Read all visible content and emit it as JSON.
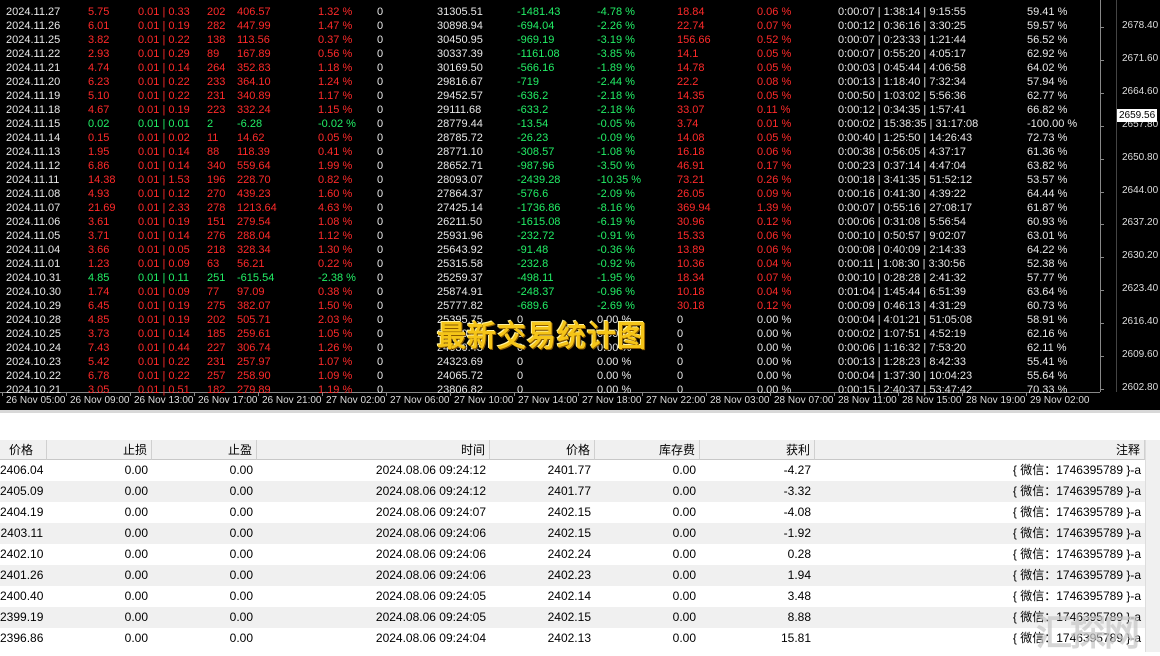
{
  "stats": {
    "rows": [
      {
        "color": "#ff2a2a",
        "cells": [
          "2024.11.27",
          "5.75",
          "0.01 | 0.33",
          "202",
          "406.57",
          "1.32 %",
          "0",
          "31305.51",
          "-1481.43",
          "-4.78 %",
          "18.84",
          "0.06 %",
          "0:00:07 | 1:38:14 | 9:15:55",
          "59.41 %"
        ]
      },
      {
        "color": "#ff2a2a",
        "cells": [
          "2024.11.26",
          "6.01",
          "0.01 | 0.19",
          "282",
          "447.99",
          "1.47 %",
          "0",
          "30898.94",
          "-694.04",
          "-2.26 %",
          "22.74",
          "0.07 %",
          "0:00:12 | 0:36:16 | 3:30:25",
          "59.57 %"
        ]
      },
      {
        "color": "#ff2a2a",
        "cells": [
          "2024.11.25",
          "3.82",
          "0.01 | 0.22",
          "138",
          "113.56",
          "0.37 %",
          "0",
          "30450.95",
          "-969.19",
          "-3.19 %",
          "156.66",
          "0.52 %",
          "0:00:07 | 0:23:33 | 1:21:44",
          "56.52 %"
        ]
      },
      {
        "color": "#ff2a2a",
        "cells": [
          "2024.11.22",
          "2.93",
          "0.01 | 0.29",
          "89",
          "167.89",
          "0.56 %",
          "0",
          "30337.39",
          "-1161.08",
          "-3.85 %",
          "14.1",
          "0.05 %",
          "0:00:07 | 0:55:20 | 4:05:17",
          "62.92 %"
        ]
      },
      {
        "color": "#ff2a2a",
        "cells": [
          "2024.11.21",
          "4.74",
          "0.01 | 0.14",
          "264",
          "352.83",
          "1.18 %",
          "0",
          "30169.50",
          "-566.16",
          "-1.89 %",
          "14.78",
          "0.05 %",
          "0:00:03 | 0:45:44 | 4:06:58",
          "64.02 %"
        ]
      },
      {
        "color": "#ff2a2a",
        "cells": [
          "2024.11.20",
          "6.23",
          "0.01 | 0.22",
          "233",
          "364.10",
          "1.24 %",
          "0",
          "29816.67",
          "-719",
          "-2.44 %",
          "22.2",
          "0.08 %",
          "0:00:13 | 1:18:40 | 7:32:34",
          "57.94 %"
        ]
      },
      {
        "color": "#ff2a2a",
        "cells": [
          "2024.11.19",
          "5.10",
          "0.01 | 0.22",
          "231",
          "340.89",
          "1.17 %",
          "0",
          "29452.57",
          "-636.2",
          "-2.18 %",
          "14.35",
          "0.05 %",
          "0:00:50 | 1:03:02 | 5:56:36",
          "62.77 %"
        ]
      },
      {
        "color": "#ff2a2a",
        "cells": [
          "2024.11.18",
          "4.67",
          "0.01 | 0.19",
          "223",
          "332.24",
          "1.15 %",
          "0",
          "29111.68",
          "-633.2",
          "-2.18 %",
          "33.07",
          "0.11 %",
          "0:00:12 | 0:34:35 | 1:57:41",
          "66.82 %"
        ]
      },
      {
        "color": "#22ee66",
        "cells": [
          "2024.11.15",
          "0.02",
          "0.01 | 0.01",
          "2",
          "-6.28",
          "-0.02 %",
          "0",
          "28779.44",
          "-13.54",
          "-0.05 %",
          "3.74",
          "0.01 %",
          "0:00:02 | 15:38:35 | 31:17:08",
          "-100.00 %"
        ]
      },
      {
        "color": "#ff2a2a",
        "cells": [
          "2024.11.14",
          "0.15",
          "0.01 | 0.02",
          "11",
          "14.62",
          "0.05 %",
          "0",
          "28785.72",
          "-26.23",
          "-0.09 %",
          "14.08",
          "0.05 %",
          "0:00:40 | 1:25:50 | 14:26:43",
          "72.73 %"
        ]
      },
      {
        "color": "#ff2a2a",
        "cells": [
          "2024.11.13",
          "1.95",
          "0.01 | 0.14",
          "88",
          "118.39",
          "0.41 %",
          "0",
          "28771.10",
          "-308.57",
          "-1.08 %",
          "16.18",
          "0.06 %",
          "0:00:38 | 0:56:05 | 4:37:17",
          "61.36 %"
        ]
      },
      {
        "color": "#ff2a2a",
        "cells": [
          "2024.11.12",
          "6.86",
          "0.01 | 0.14",
          "340",
          "559.64",
          "1.99 %",
          "0",
          "28652.71",
          "-987.96",
          "-3.50 %",
          "46.91",
          "0.17 %",
          "0:00:23 | 0:37:14 | 4:47:04",
          "63.82 %"
        ]
      },
      {
        "color": "#ff2a2a",
        "cells": [
          "2024.11.11",
          "14.38",
          "0.01 | 1.53",
          "196",
          "228.70",
          "0.82 %",
          "0",
          "28093.07",
          "-2439.28",
          "-10.35 %",
          "73.21",
          "0.26 %",
          "0:00:18 | 3:41:35 | 51:52:12",
          "53.57 %"
        ]
      },
      {
        "color": "#ff2a2a",
        "cells": [
          "2024.11.08",
          "4.93",
          "0.01 | 0.12",
          "270",
          "439.23",
          "1.60 %",
          "0",
          "27864.37",
          "-576.6",
          "-2.09 %",
          "26.05",
          "0.09 %",
          "0:00:16 | 0:41:30 | 4:39:22",
          "64.44 %"
        ]
      },
      {
        "color": "#ff2a2a",
        "cells": [
          "2024.11.07",
          "21.69",
          "0.01 | 2.33",
          "278",
          "1213.64",
          "4.63 %",
          "0",
          "27425.14",
          "-1736.86",
          "-8.16 %",
          "369.94",
          "1.39 %",
          "0:00:07 | 0:55:16 | 27:08:17",
          "61.87 %"
        ]
      },
      {
        "color": "#ff2a2a",
        "cells": [
          "2024.11.06",
          "3.61",
          "0.01 | 0.19",
          "151",
          "279.54",
          "1.08 %",
          "0",
          "26211.50",
          "-1615.08",
          "-6.19 %",
          "30.96",
          "0.12 %",
          "0:00:06 | 0:31:08 | 5:56:54",
          "60.93 %"
        ]
      },
      {
        "color": "#ff2a2a",
        "cells": [
          "2024.11.05",
          "3.71",
          "0.01 | 0.14",
          "276",
          "288.04",
          "1.12 %",
          "0",
          "25931.96",
          "-232.72",
          "-0.91 %",
          "15.33",
          "0.06 %",
          "0:00:10 | 0:50:57 | 9:02:07",
          "63.01 %"
        ]
      },
      {
        "color": "#ff2a2a",
        "cells": [
          "2024.11.04",
          "3.66",
          "0.01 | 0.05",
          "218",
          "328.34",
          "1.30 %",
          "0",
          "25643.92",
          "-91.48",
          "-0.36 %",
          "13.89",
          "0.06 %",
          "0:00:08 | 0:40:09 | 2:14:33",
          "64.22 %"
        ]
      },
      {
        "color": "#ff2a2a",
        "cells": [
          "2024.11.01",
          "1.23",
          "0.01 | 0.09",
          "63",
          "56.21",
          "0.22 %",
          "0",
          "25315.58",
          "-232.8",
          "-0.92 %",
          "10.36",
          "0.04 %",
          "0:00:11 | 1:08:30 | 3:30:56",
          "52.38 %"
        ]
      },
      {
        "color": "#22ee66",
        "cells": [
          "2024.10.31",
          "4.85",
          "0.01 | 0.11",
          "251",
          "-615.54",
          "-2.38 %",
          "0",
          "25259.37",
          "-498.11",
          "-1.95 %",
          "18.34",
          "0.07 %",
          "0:00:10 | 0:28:28 | 2:41:32",
          "57.77 %"
        ]
      },
      {
        "color": "#ff2a2a",
        "cells": [
          "2024.10.30",
          "1.74",
          "0.01 | 0.09",
          "77",
          "97.09",
          "0.38 %",
          "0",
          "25874.91",
          "-248.37",
          "-0.96 %",
          "10.18",
          "0.04 %",
          "0:01:04 | 1:45:44 | 6:51:39",
          "63.64 %"
        ]
      },
      {
        "color": "#ff2a2a",
        "cells": [
          "2024.10.29",
          "6.45",
          "0.01 | 0.19",
          "275",
          "382.07",
          "1.50 %",
          "0",
          "25777.82",
          "-689.6",
          "-2.69 %",
          "30.18",
          "0.12 %",
          "0:00:09 | 0:46:13 | 4:31:29",
          "60.73 %"
        ]
      },
      {
        "color": "#ff2a2a",
        "cells": [
          "2024.10.28",
          "4.85",
          "0.01 | 0.19",
          "202",
          "505.71",
          "2.03 %",
          "0",
          "25395.75",
          "0",
          "0.00 %",
          "0",
          "0.00 %",
          "0:00:04 | 4:01:21 | 51:05:08",
          "58.91 %"
        ]
      },
      {
        "color": "#ff2a2a",
        "cells": [
          "2024.10.25",
          "3.73",
          "0.01 | 0.14",
          "185",
          "259.61",
          "1.05 %",
          "0",
          "24890.04",
          "0",
          "0.00 %",
          "0",
          "0.00 %",
          "0:00:02 | 1:07:51 | 4:52:19",
          "62.16 %"
        ]
      },
      {
        "color": "#ff2a2a",
        "cells": [
          "2024.10.24",
          "7.43",
          "0.01 | 0.44",
          "227",
          "306.74",
          "1.26 %",
          "0",
          "24630.43",
          "0",
          "0.00 %",
          "0",
          "0.00 %",
          "0:00:06 | 1:16:32 | 7:53:20",
          "62.11 %"
        ]
      },
      {
        "color": "#ff2a2a",
        "cells": [
          "2024.10.23",
          "5.42",
          "0.01 | 0.22",
          "231",
          "257.97",
          "1.07 %",
          "0",
          "24323.69",
          "0",
          "0.00 %",
          "0",
          "0.00 %",
          "0:00:13 | 1:28:23 | 8:42:33",
          "55.41 %"
        ]
      },
      {
        "color": "#ff2a2a",
        "cells": [
          "2024.10.22",
          "6.78",
          "0.01 | 0.22",
          "257",
          "258.90",
          "1.09 %",
          "0",
          "24065.72",
          "0",
          "0.00 %",
          "0",
          "0.00 %",
          "0:00:04 | 1:37:30 | 10:04:23",
          "55.64 %"
        ]
      },
      {
        "color": "#ff2a2a",
        "cells": [
          "2024.10.21",
          "3.05",
          "0.01 | 0.51",
          "182",
          "279.89",
          "1.19 %",
          "0",
          "23806.82",
          "0",
          "0.00 %",
          "0",
          "0.00 %",
          "0:00:15 | 2:40:37 | 53:47:42",
          "70.33 %"
        ]
      }
    ],
    "overlay_title": "最新交易统计图"
  },
  "price_axis": {
    "labels": [
      "2678.40",
      "2671.60",
      "2664.60",
      "2657.80",
      "2650.80",
      "2644.00",
      "2637.20",
      "2630.20",
      "2623.40",
      "2616.40",
      "2609.60",
      "2602.80"
    ],
    "current": "2659.56"
  },
  "time_axis": [
    "26 Nov 05:00",
    "26 Nov 09:00",
    "26 Nov 13:00",
    "26 Nov 17:00",
    "26 Nov 21:00",
    "27 Nov 02:00",
    "27 Nov 06:00",
    "27 Nov 10:00",
    "27 Nov 14:00",
    "27 Nov 18:00",
    "27 Nov 22:00",
    "28 Nov 03:00",
    "28 Nov 07:00",
    "28 Nov 11:00",
    "28 Nov 15:00",
    "28 Nov 19:00",
    "29 Nov 02:00"
  ],
  "table": {
    "headers": [
      "价格",
      "止损",
      "止盈",
      "时间",
      "价格",
      "库存费",
      "获利",
      "注释"
    ],
    "rows": [
      [
        "2406.04",
        "0.00",
        "0.00",
        "2024.08.06 09:24:12",
        "2401.77",
        "0.00",
        "-4.27",
        "{ 微信：1746395789 }-a"
      ],
      [
        "2405.09",
        "0.00",
        "0.00",
        "2024.08.06 09:24:12",
        "2401.77",
        "0.00",
        "-3.32",
        "{ 微信：1746395789 }-a"
      ],
      [
        "2404.19",
        "0.00",
        "0.00",
        "2024.08.06 09:24:07",
        "2402.15",
        "0.00",
        "-4.08",
        "{ 微信：1746395789 }-a"
      ],
      [
        "2403.11",
        "0.00",
        "0.00",
        "2024.08.06 09:24:06",
        "2402.15",
        "0.00",
        "-1.92",
        "{ 微信：1746395789 }-a"
      ],
      [
        "2402.10",
        "0.00",
        "0.00",
        "2024.08.06 09:24:06",
        "2402.24",
        "0.00",
        "0.28",
        "{ 微信：1746395789 }-a"
      ],
      [
        "2401.26",
        "0.00",
        "0.00",
        "2024.08.06 09:24:06",
        "2402.23",
        "0.00",
        "1.94",
        "{ 微信：1746395789 }-a"
      ],
      [
        "2400.40",
        "0.00",
        "0.00",
        "2024.08.06 09:24:05",
        "2402.14",
        "0.00",
        "3.48",
        "{ 微信：1746395789 }-a"
      ],
      [
        "2399.19",
        "0.00",
        "0.00",
        "2024.08.06 09:24:05",
        "2402.15",
        "0.00",
        "8.88",
        "{ 微信：1746395789 }-a"
      ],
      [
        "2396.86",
        "0.00",
        "0.00",
        "2024.08.06 09:24:04",
        "2402.13",
        "0.00",
        "15.81",
        "{ 微信：1746395789 }-a"
      ]
    ]
  },
  "watermark": "汇探网"
}
